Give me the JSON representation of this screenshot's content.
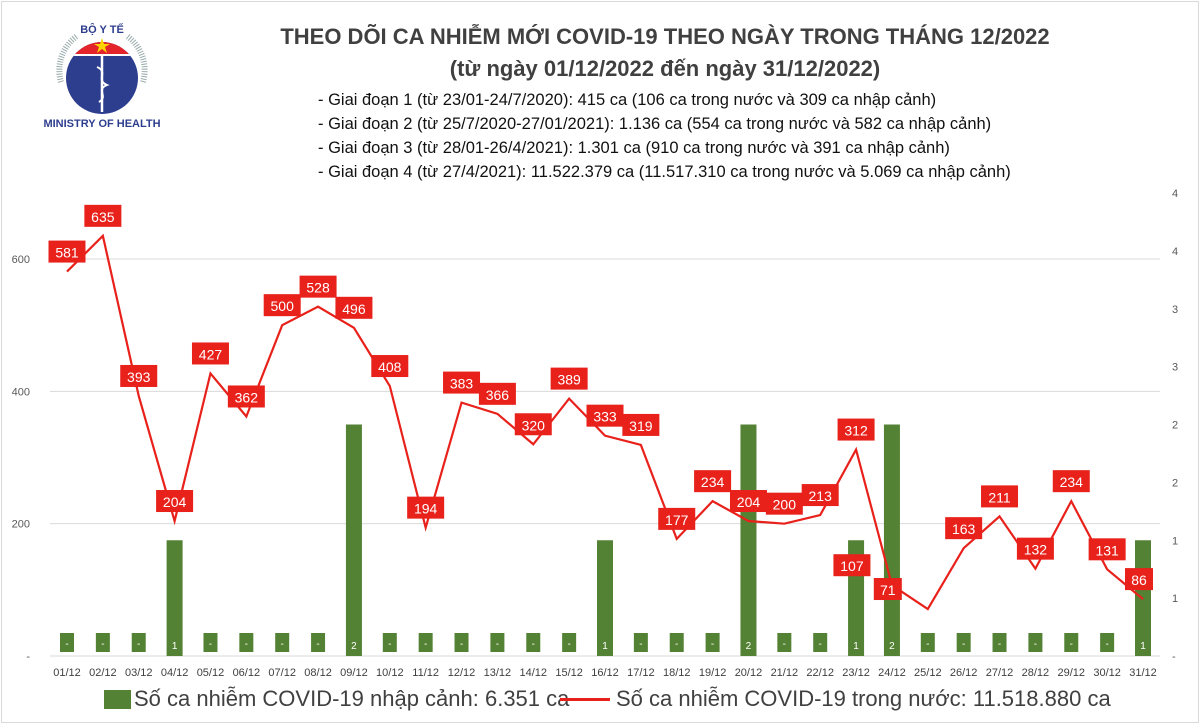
{
  "logo": {
    "top_text": "BỘ Y TẾ",
    "bottom_text": "MINISTRY OF HEALTH"
  },
  "title": "THEO DÕI CA NHIỄM MỚI COVID-19 THEO NGÀY TRONG THÁNG 12/2022",
  "subtitle": "(từ ngày 01/12/2022 đến ngày 31/12/2022)",
  "notes": [
    "- Giai đoạn 1 (từ 23/01-24/7/2020): 415 ca (106 ca trong nước và 309 ca nhập cảnh)",
    "- Giai đoạn 2 (từ 25/7/2020-27/01/2021): 1.136 ca (554 ca trong nước và 582 ca nhập cảnh)",
    "- Giai đoạn 3 (từ 28/01-26/4/2021): 1.301 ca (910 ca trong nước và 391 ca nhập cảnh)",
    "- Giai đoạn 4 (từ 27/4/2021): 11.522.379 ca (11.517.310 ca trong nước và 5.069 ca nhập cảnh)"
  ],
  "chart_data": {
    "type": "bar+line",
    "categories": [
      "01/12",
      "02/12",
      "03/12",
      "04/12",
      "05/12",
      "06/12",
      "07/12",
      "08/12",
      "09/12",
      "10/12",
      "11/12",
      "12/12",
      "13/12",
      "14/12",
      "15/12",
      "16/12",
      "17/12",
      "18/12",
      "19/12",
      "20/12",
      "21/12",
      "22/12",
      "23/12",
      "24/12",
      "25/12",
      "26/12",
      "27/12",
      "28/12",
      "29/12",
      "30/12",
      "31/12"
    ],
    "series": [
      {
        "name": "Số ca nhiễm COVID-19 nhập cảnh: 6.351 ca",
        "type": "bar",
        "axis": "right",
        "color": "#548235",
        "values": [
          0,
          0,
          0,
          1,
          0,
          0,
          0,
          0,
          2,
          0,
          0,
          0,
          0,
          0,
          0,
          1,
          0,
          0,
          0,
          2,
          0,
          0,
          1,
          2,
          0,
          0,
          0,
          0,
          0,
          0,
          1
        ]
      },
      {
        "name": "Số ca nhiễm COVID-19 trong nước: 11.518.880 ca",
        "type": "line",
        "axis": "left",
        "color": "#e8211b",
        "values": [
          581,
          635,
          393,
          204,
          427,
          362,
          500,
          528,
          496,
          408,
          194,
          383,
          366,
          320,
          389,
          333,
          319,
          177,
          234,
          204,
          200,
          213,
          312,
          107,
          71,
          163,
          211,
          132,
          234,
          131,
          86
        ]
      }
    ],
    "left_axis": {
      "range": [
        0,
        600
      ],
      "ticks": [
        "-",
        "200",
        "400",
        "600"
      ]
    },
    "right_axis": {
      "range": [
        0,
        4
      ],
      "ticks": [
        "-",
        "1",
        "1",
        "2",
        "2",
        "3",
        "3",
        "4",
        "4"
      ]
    },
    "zero_label": "-",
    "grid": true,
    "legend": "bottom"
  },
  "legend": {
    "bar_label": "Số ca nhiễm COVID-19 nhập cảnh: 6.351 ca",
    "line_label": "Số ca nhiễm COVID-19 trong nước: 11.518.880 ca"
  }
}
